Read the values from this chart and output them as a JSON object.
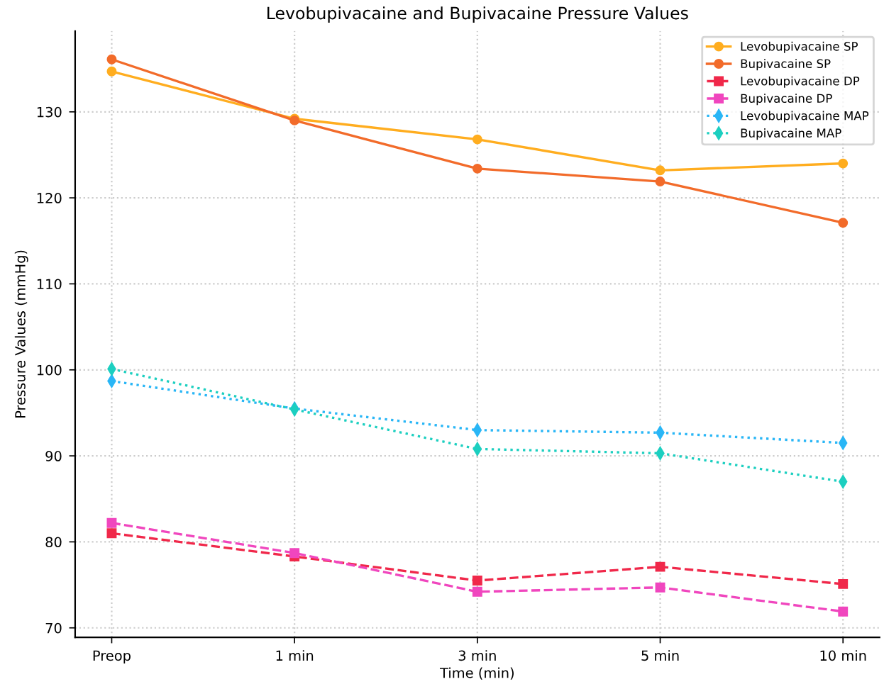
{
  "chart_data": {
    "type": "line",
    "title": "Levobupivacaine and Bupivacaine Pressure Values",
    "xlabel": "Time (min)",
    "ylabel": "Pressure Values (mmHg)",
    "categories": [
      "Preop",
      "1 min",
      "3 min",
      "5 min",
      "10 min"
    ],
    "series": [
      {
        "name": "Levobupivacaine SP",
        "color": "#ffad1f",
        "marker": "circle",
        "line_style": "solid",
        "values": [
          134.7,
          129.2,
          126.8,
          123.2,
          124.0
        ]
      },
      {
        "name": "Bupivacaine SP",
        "color": "#f26b2a",
        "marker": "circle",
        "line_style": "solid",
        "values": [
          136.1,
          129.0,
          123.4,
          121.9,
          117.1
        ]
      },
      {
        "name": "Levobupivacaine DP",
        "color": "#f0284a",
        "marker": "square",
        "line_style": "dashed",
        "values": [
          81.0,
          78.3,
          75.5,
          77.1,
          75.1
        ]
      },
      {
        "name": "Bupivacaine DP",
        "color": "#f046be",
        "marker": "square",
        "line_style": "dashed",
        "values": [
          82.2,
          78.7,
          74.2,
          74.7,
          71.9
        ]
      },
      {
        "name": "Levobupivacaine MAP",
        "color": "#29b6f6",
        "marker": "diamond",
        "line_style": "dotted",
        "values": [
          98.7,
          95.5,
          93.0,
          92.7,
          91.5
        ]
      },
      {
        "name": "Bupivacaine MAP",
        "color": "#1ccfc0",
        "marker": "diamond",
        "line_style": "dotted",
        "values": [
          100.1,
          95.4,
          90.8,
          90.3,
          87.0
        ]
      }
    ],
    "ylim": [
      68.9,
      139.4
    ],
    "yticks": [
      70,
      80,
      90,
      100,
      110,
      120,
      130
    ],
    "grid": true,
    "legend": "top right"
  }
}
